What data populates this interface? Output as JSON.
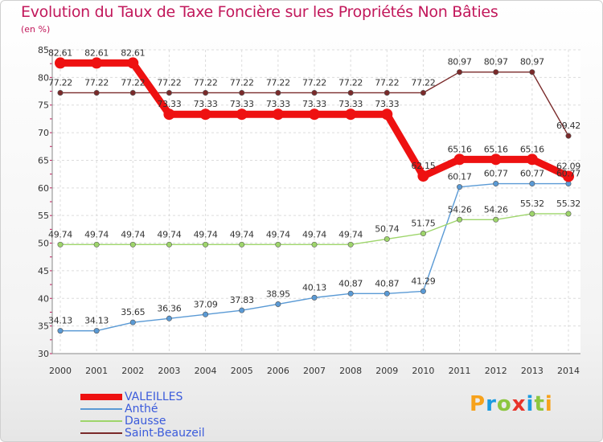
{
  "header": {
    "title": "Evolution du Taux de Taxe Foncière sur les Propriétés Non Bâties",
    "subtitle": "(en %)"
  },
  "logo": {
    "text": "Proxiti",
    "colors": [
      "#f7a21b",
      "#1b9be0",
      "#8cc63f",
      "#e8332a",
      "#1b9be0",
      "#8cc63f",
      "#f7a21b"
    ]
  },
  "chart_data": {
    "type": "line",
    "title": "Evolution du Taux de Taxe Foncière sur les Propriétés Non Bâties",
    "ylabel": "(en %)",
    "xlabel": "",
    "ylim": [
      30,
      85
    ],
    "yticks": [
      "30",
      "35",
      "40",
      "45",
      "50",
      "55",
      "60",
      "65",
      "70",
      "75",
      "80",
      "85"
    ],
    "categories": [
      "2000",
      "2001",
      "2002",
      "2003",
      "2004",
      "2005",
      "2006",
      "2007",
      "2008",
      "2009",
      "2010",
      "2011",
      "2012",
      "2013",
      "2014"
    ],
    "grid": true,
    "series": [
      {
        "name": "VALEILLES",
        "color": "#ee1111",
        "emphasis": true,
        "values": [
          82.61,
          82.61,
          82.61,
          73.33,
          73.33,
          73.33,
          73.33,
          73.33,
          73.33,
          73.33,
          62.15,
          65.16,
          65.16,
          65.16,
          62.09
        ],
        "labels": [
          "82.61",
          "82.61",
          "82.61",
          "73.33",
          "73.33",
          "73.33",
          "73.33",
          "73.33",
          "73.33",
          "73.33",
          "62.15",
          "65.16",
          "65.16",
          "65.16",
          "62.09"
        ]
      },
      {
        "name": "Anthé",
        "color": "#5a9ad5",
        "emphasis": false,
        "values": [
          34.13,
          34.13,
          35.65,
          36.36,
          37.09,
          37.83,
          38.95,
          40.13,
          40.87,
          40.87,
          41.29,
          60.17,
          60.77,
          60.77,
          60.77
        ],
        "labels": [
          "34.13",
          "34.13",
          "35.65",
          "36.36",
          "37.09",
          "37.83",
          "38.95",
          "40.13",
          "40.87",
          "40.87",
          "41.29",
          "60.17",
          "60.77",
          "60.77",
          "60.77"
        ]
      },
      {
        "name": "Dausse",
        "color": "#9ed56b",
        "emphasis": false,
        "values": [
          49.74,
          49.74,
          49.74,
          49.74,
          49.74,
          49.74,
          49.74,
          49.74,
          49.74,
          50.74,
          51.75,
          54.26,
          54.26,
          55.32,
          55.32
        ],
        "labels": [
          "49.74",
          "49.74",
          "49.74",
          "49.74",
          "49.74",
          "49.74",
          "49.74",
          "49.74",
          "49.74",
          "50.74",
          "51.75",
          "54.26",
          "54.26",
          "55.32",
          "55.32"
        ]
      },
      {
        "name": "Saint-Beauzeil",
        "color": "#7a2a2a",
        "emphasis": false,
        "values": [
          77.22,
          77.22,
          77.22,
          77.22,
          77.22,
          77.22,
          77.22,
          77.22,
          77.22,
          77.22,
          77.22,
          80.97,
          80.97,
          80.97,
          69.42
        ],
        "labels": [
          "77.22",
          "77.22",
          "77.22",
          "77.22",
          "77.22",
          "77.22",
          "77.22",
          "77.22",
          "77.22",
          "77.22",
          "77.22",
          "80.97",
          "80.97",
          "80.97",
          "69.42"
        ]
      }
    ]
  }
}
